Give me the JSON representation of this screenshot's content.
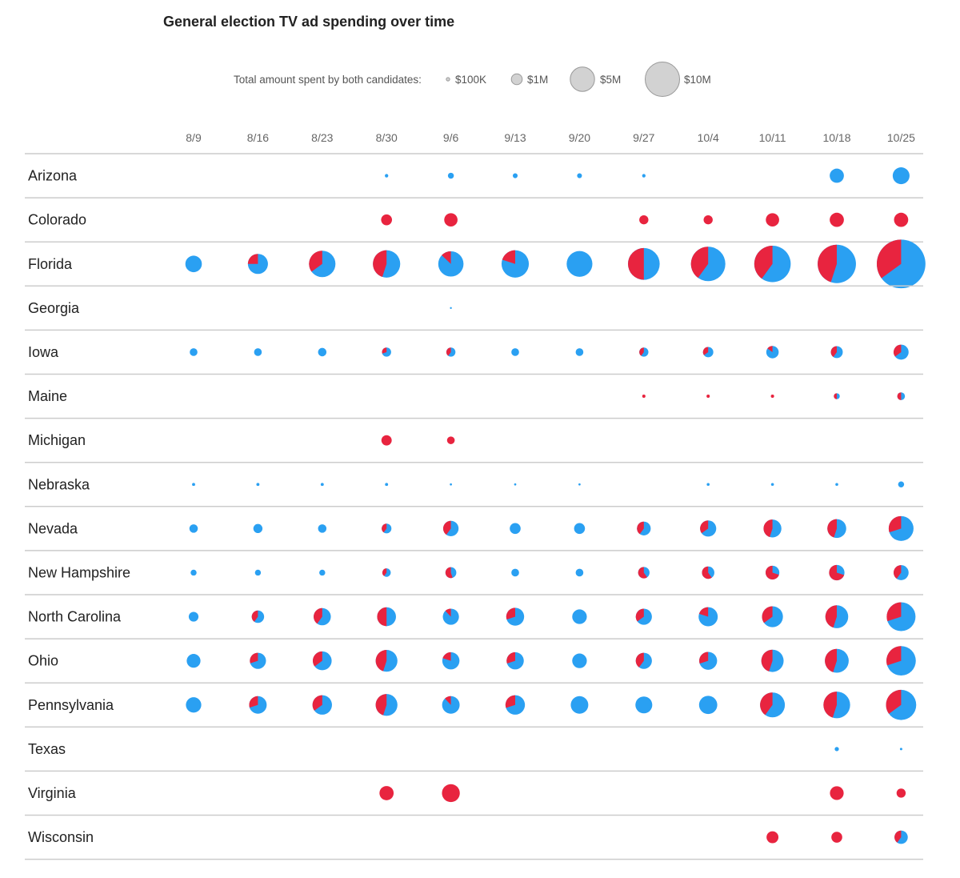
{
  "chart_data": {
    "type": "bubble-pie-matrix",
    "title": "General election TV ad spending over time",
    "legend": {
      "label": "Total amount spent by both candidates:",
      "sizes": [
        {
          "label": "$100K",
          "amount": 0.1
        },
        {
          "label": "$1M",
          "amount": 1
        },
        {
          "label": "$5M",
          "amount": 5
        },
        {
          "label": "$10M",
          "amount": 10
        }
      ]
    },
    "colors": {
      "dem_share": "#2aa0f2",
      "rep_share": "#e8243f",
      "legend_fill": "#d2d2d2",
      "legend_stroke": "#999999",
      "rule": "#cccccc"
    },
    "value_format": "[total amount in $M, share in red (0-1)]; null = no spending",
    "dates": [
      "8/9",
      "8/16",
      "8/23",
      "8/30",
      "9/6",
      "9/13",
      "9/20",
      "9/27",
      "10/4",
      "10/11",
      "10/18",
      "10/25"
    ],
    "states": [
      {
        "name": "Arizona",
        "values": [
          null,
          null,
          null,
          [
            0.1,
            0
          ],
          [
            0.3,
            0
          ],
          [
            0.2,
            0
          ],
          [
            0.2,
            0
          ],
          [
            0.1,
            0
          ],
          null,
          null,
          [
            1.7,
            0
          ],
          [
            2.4,
            0
          ]
        ]
      },
      {
        "name": "Colorado",
        "values": [
          null,
          null,
          null,
          [
            1,
            1
          ],
          [
            1.5,
            1
          ],
          null,
          null,
          [
            0.7,
            1
          ],
          [
            0.7,
            1
          ],
          [
            1.5,
            1
          ],
          [
            1.7,
            1
          ],
          [
            1.7,
            1
          ]
        ]
      },
      {
        "name": "Florida",
        "values": [
          [
            2.3,
            0
          ],
          [
            3.4,
            0.25
          ],
          [
            5.9,
            0.35
          ],
          [
            6.3,
            0.45
          ],
          [
            5.4,
            0.13
          ],
          [
            6.3,
            0.2
          ],
          [
            5.6,
            0
          ],
          [
            8.5,
            0.5
          ],
          [
            10,
            0.4
          ],
          [
            11.2,
            0.4
          ],
          [
            12.4,
            0.45
          ],
          [
            20,
            0.35
          ]
        ]
      },
      {
        "name": "Georgia",
        "values": [
          null,
          null,
          null,
          null,
          [
            0.02,
            0
          ],
          null,
          null,
          null,
          null,
          null,
          null,
          null
        ]
      },
      {
        "name": "Iowa",
        "values": [
          [
            0.5,
            0
          ],
          [
            0.5,
            0
          ],
          [
            0.6,
            0
          ],
          [
            0.7,
            0.3
          ],
          [
            0.7,
            0.4
          ],
          [
            0.5,
            0
          ],
          [
            0.5,
            0
          ],
          [
            0.7,
            0.4
          ],
          [
            0.9,
            0.35
          ],
          [
            1.3,
            0.15
          ],
          [
            1.2,
            0.4
          ],
          [
            1.9,
            0.35
          ]
        ]
      },
      {
        "name": "Maine",
        "values": [
          null,
          null,
          null,
          null,
          null,
          null,
          null,
          [
            0.09,
            1
          ],
          [
            0.09,
            1
          ],
          [
            0.09,
            1
          ],
          [
            0.3,
            0.5
          ],
          [
            0.5,
            0.5
          ]
        ]
      },
      {
        "name": "Michigan",
        "values": [
          null,
          null,
          null,
          [
            0.9,
            1
          ],
          [
            0.5,
            1
          ],
          null,
          null,
          null,
          null,
          null,
          null,
          null
        ]
      },
      {
        "name": "Nebraska",
        "values": [
          [
            0.08,
            0
          ],
          [
            0.08,
            0
          ],
          [
            0.08,
            0
          ],
          [
            0.08,
            0
          ],
          [
            0.04,
            0
          ],
          [
            0.04,
            0
          ],
          [
            0.04,
            0
          ],
          null,
          [
            0.07,
            0
          ],
          [
            0.07,
            0
          ],
          [
            0.07,
            0
          ],
          [
            0.3,
            0
          ]
        ]
      },
      {
        "name": "Nevada",
        "values": [
          [
            0.6,
            0
          ],
          [
            0.7,
            0
          ],
          [
            0.6,
            0
          ],
          [
            0.8,
            0.4
          ],
          [
            2,
            0.4
          ],
          [
            1,
            0
          ],
          [
            1,
            0
          ],
          [
            1.6,
            0.4
          ],
          [
            2.2,
            0.35
          ],
          [
            2.7,
            0.45
          ],
          [
            3,
            0.45
          ],
          [
            5.2,
            0.3
          ]
        ]
      },
      {
        "name": "New Hampshire",
        "values": [
          [
            0.3,
            0
          ],
          [
            0.3,
            0
          ],
          [
            0.3,
            0
          ],
          [
            0.6,
            0.4
          ],
          [
            1,
            0.55
          ],
          [
            0.5,
            0
          ],
          [
            0.5,
            0
          ],
          [
            1.1,
            0.6
          ],
          [
            1.3,
            0.6
          ],
          [
            1.6,
            0.7
          ],
          [
            2,
            0.7
          ],
          [
            1.9,
            0.4
          ]
        ]
      },
      {
        "name": "North Carolina",
        "values": [
          [
            0.8,
            0
          ],
          [
            1.3,
            0.4
          ],
          [
            2.5,
            0.4
          ],
          [
            3,
            0.5
          ],
          [
            2.2,
            0.12
          ],
          [
            2.7,
            0.3
          ],
          [
            1.8,
            0
          ],
          [
            2.2,
            0.35
          ],
          [
            3.1,
            0.2
          ],
          [
            3.7,
            0.35
          ],
          [
            4.4,
            0.45
          ],
          [
            7,
            0.3
          ]
        ]
      },
      {
        "name": "Ohio",
        "values": [
          [
            1.6,
            0
          ],
          [
            2.2,
            0.3
          ],
          [
            3,
            0.35
          ],
          [
            4,
            0.45
          ],
          [
            2.5,
            0.2
          ],
          [
            2.5,
            0.3
          ],
          [
            1.8,
            0
          ],
          [
            2.2,
            0.4
          ],
          [
            2.7,
            0.3
          ],
          [
            4.2,
            0.45
          ],
          [
            4.8,
            0.45
          ],
          [
            7.3,
            0.3
          ]
        ]
      },
      {
        "name": "Pennsylvania",
        "values": [
          [
            2,
            0
          ],
          [
            2.6,
            0.3
          ],
          [
            3.2,
            0.35
          ],
          [
            4,
            0.45
          ],
          [
            2.6,
            0.12
          ],
          [
            3.2,
            0.3
          ],
          [
            2.6,
            0
          ],
          [
            2.4,
            0
          ],
          [
            2.8,
            0
          ],
          [
            5.2,
            0.4
          ],
          [
            6,
            0.45
          ],
          [
            7.7,
            0.35
          ]
        ]
      },
      {
        "name": "Texas",
        "values": [
          null,
          null,
          null,
          null,
          null,
          null,
          null,
          null,
          null,
          null,
          [
            0.15,
            0
          ],
          [
            0.05,
            0
          ]
        ]
      },
      {
        "name": "Virginia",
        "values": [
          null,
          null,
          null,
          [
            1.7,
            1
          ],
          [
            2.7,
            1
          ],
          null,
          null,
          null,
          null,
          null,
          [
            1.6,
            1
          ],
          [
            0.7,
            1
          ]
        ]
      },
      {
        "name": "Wisconsin",
        "values": [
          null,
          null,
          null,
          null,
          null,
          null,
          null,
          null,
          null,
          [
            1.2,
            1
          ],
          [
            1,
            1
          ],
          [
            1.5,
            0.4
          ]
        ]
      }
    ]
  }
}
